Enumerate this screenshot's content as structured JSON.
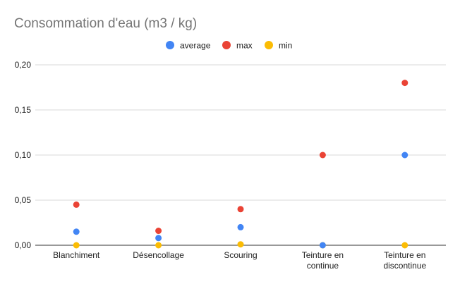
{
  "chart_data": {
    "type": "scatter",
    "title": "Consommation d'eau (m3 / kg)",
    "xlabel": "",
    "ylabel": "",
    "categories": [
      [
        "Blanchiment"
      ],
      [
        "Désencollage"
      ],
      [
        "Scouring"
      ],
      [
        "Teinture en",
        "continue"
      ],
      [
        "Teinture en",
        "discontinue"
      ]
    ],
    "ylim": [
      0,
      0.2
    ],
    "yticks": [
      {
        "value": 0,
        "label": "0,00"
      },
      {
        "value": 0.05,
        "label": "0,05"
      },
      {
        "value": 0.1,
        "label": "0,10"
      },
      {
        "value": 0.15,
        "label": "0,15"
      },
      {
        "value": 0.2,
        "label": "0,20"
      }
    ],
    "grid": true,
    "legend_position": "top",
    "series": [
      {
        "name": "average",
        "color": "#4285f4",
        "values": [
          0.015,
          0.008,
          0.02,
          0.0,
          0.1
        ]
      },
      {
        "name": "max",
        "color": "#ea4335",
        "values": [
          0.045,
          0.016,
          0.04,
          0.1,
          0.18
        ]
      },
      {
        "name": "min",
        "color": "#fbbc04",
        "values": [
          0.0,
          0.0,
          0.001,
          0.0,
          0.0
        ]
      }
    ]
  }
}
